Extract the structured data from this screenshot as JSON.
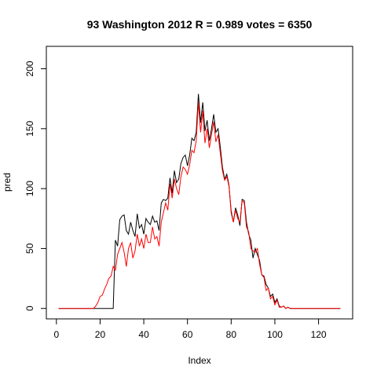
{
  "chart_data": {
    "type": "line",
    "title": "93 Washington 2012 R = 0.989 votes = 6350",
    "xlabel": "Index",
    "ylabel": "pred",
    "xlim": [
      1,
      130
    ],
    "ylim": [
      0,
      210
    ],
    "x_ticks": [
      0,
      20,
      40,
      60,
      80,
      100,
      120
    ],
    "y_ticks": [
      0,
      50,
      100,
      150,
      200
    ],
    "grid": false,
    "legend": "none",
    "series": [
      {
        "color": "#000000",
        "x": [
          1,
          2,
          3,
          4,
          5,
          6,
          7,
          8,
          9,
          10,
          11,
          12,
          13,
          14,
          15,
          16,
          17,
          18,
          19,
          20,
          21,
          22,
          23,
          24,
          25,
          26,
          27,
          28,
          29,
          30,
          31,
          32,
          33,
          34,
          35,
          36,
          37,
          38,
          39,
          40,
          41,
          42,
          43,
          44,
          45,
          46,
          47,
          48,
          49,
          50,
          51,
          52,
          53,
          54,
          55,
          56,
          57,
          58,
          59,
          60,
          61,
          62,
          63,
          64,
          65,
          66,
          67,
          68,
          69,
          70,
          71,
          72,
          73,
          74,
          75,
          76,
          77,
          78,
          79,
          80,
          81,
          82,
          83,
          84,
          85,
          86,
          87,
          88,
          89,
          90,
          91,
          92,
          93,
          94,
          95,
          96,
          97,
          98,
          99,
          100,
          101,
          102,
          103,
          104,
          105,
          106,
          107,
          108,
          109,
          110,
          111,
          112,
          113,
          114,
          115,
          116,
          117,
          118,
          119,
          120,
          121,
          122,
          123,
          124,
          125,
          126,
          127,
          128,
          129,
          130
        ],
        "values": [
          0,
          0,
          0,
          0,
          0,
          0,
          0,
          0,
          0,
          0,
          0,
          0,
          0,
          0,
          0,
          0,
          0,
          0,
          0,
          0,
          0,
          0,
          0,
          0,
          0,
          0,
          57,
          52,
          74,
          77,
          78,
          65,
          62,
          72,
          65,
          60,
          79,
          67,
          70,
          62,
          75,
          72,
          70,
          77,
          72,
          73,
          65,
          88,
          91,
          90,
          92,
          109,
          96,
          115,
          105,
          108,
          121,
          126,
          128,
          119,
          128,
          142,
          140,
          147,
          179,
          155,
          172,
          148,
          157,
          140,
          150,
          162,
          147,
          150,
          135,
          118,
          108,
          112,
          103,
          80,
          72,
          84,
          78,
          69,
          91,
          90,
          72,
          62,
          57,
          42,
          50,
          45,
          40,
          28,
          27,
          20,
          17,
          10,
          12,
          5,
          8,
          2,
          1,
          2,
          0,
          1,
          0,
          0,
          0,
          0,
          0,
          0,
          0,
          0,
          0,
          0,
          0,
          0,
          0,
          0,
          0,
          0,
          0,
          0,
          0,
          0,
          0,
          0,
          0,
          0
        ]
      },
      {
        "color": "#ff0000",
        "x": [
          1,
          2,
          3,
          4,
          5,
          6,
          7,
          8,
          9,
          10,
          11,
          12,
          13,
          14,
          15,
          16,
          17,
          18,
          19,
          20,
          21,
          22,
          23,
          24,
          25,
          26,
          27,
          28,
          29,
          30,
          31,
          32,
          33,
          34,
          35,
          36,
          37,
          38,
          39,
          40,
          41,
          42,
          43,
          44,
          45,
          46,
          47,
          48,
          49,
          50,
          51,
          52,
          53,
          54,
          55,
          56,
          57,
          58,
          59,
          60,
          61,
          62,
          63,
          64,
          65,
          66,
          67,
          68,
          69,
          70,
          71,
          72,
          73,
          74,
          75,
          76,
          77,
          78,
          79,
          80,
          81,
          82,
          83,
          84,
          85,
          86,
          87,
          88,
          89,
          90,
          91,
          92,
          93,
          94,
          95,
          96,
          97,
          98,
          99,
          100,
          101,
          102,
          103,
          104,
          105,
          106,
          107,
          108,
          109,
          110,
          111,
          112,
          113,
          114,
          115,
          116,
          117,
          118,
          119,
          120,
          121,
          122,
          123,
          124,
          125,
          126,
          127,
          128,
          129,
          130
        ],
        "values": [
          0,
          0,
          0,
          0,
          0,
          0,
          0,
          0,
          0,
          0,
          0,
          0,
          0,
          0,
          0,
          0,
          0,
          2,
          5,
          10,
          11,
          16,
          20,
          25,
          27,
          35,
          32,
          45,
          50,
          55,
          47,
          35,
          50,
          55,
          42,
          48,
          62,
          52,
          58,
          50,
          62,
          55,
          55,
          68,
          58,
          60,
          52,
          72,
          80,
          88,
          82,
          104,
          92,
          108,
          100,
          95,
          110,
          118,
          116,
          112,
          120,
          132,
          130,
          140,
          172,
          147,
          165,
          138,
          150,
          134,
          145,
          156,
          139,
          145,
          130,
          115,
          107,
          110,
          102,
          82,
          72,
          82,
          75,
          72,
          90,
          88,
          68,
          64,
          50,
          48,
          47,
          50,
          37,
          28,
          26,
          15,
          17,
          8,
          10,
          3,
          7,
          1,
          1,
          2,
          0,
          1,
          0,
          0,
          0,
          0,
          0,
          0,
          0,
          0,
          0,
          0,
          0,
          0,
          0,
          0,
          0,
          0,
          0,
          0,
          0,
          0,
          0,
          0,
          0,
          0
        ]
      }
    ]
  }
}
